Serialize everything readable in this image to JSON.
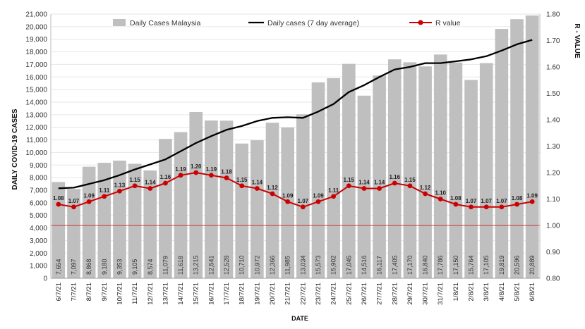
{
  "chart_data": {
    "type": "bar",
    "title": "",
    "xlabel": "DATE",
    "ylabel": "DAILY COVID-19 CASES",
    "y2label": "R - VALUE",
    "ylim": [
      0,
      21000
    ],
    "y2lim": [
      0.8,
      1.8
    ],
    "yticks": [
      "0",
      "1,000",
      "2,000",
      "3,000",
      "4,000",
      "5,000",
      "6,000",
      "7,000",
      "8,000",
      "9,000",
      "10,000",
      "11,000",
      "12,000",
      "13,000",
      "14,000",
      "15,000",
      "16,000",
      "17,000",
      "18,000",
      "19,000",
      "20,000",
      "21,000"
    ],
    "y2ticks": [
      "0.80",
      "0.90",
      "1.00",
      "1.10",
      "1.20",
      "1.30",
      "1.40",
      "1.50",
      "1.60",
      "1.70",
      "1.80"
    ],
    "categories": [
      "6/7/21",
      "7/7/21",
      "8/7/21",
      "9/7/21",
      "10/7/21",
      "11/7/21",
      "12/7/21",
      "13/7/21",
      "14/7/21",
      "15/7/21",
      "16/7/21",
      "17/7/21",
      "18/7/21",
      "19/7/21",
      "20/7/21",
      "21/7/21",
      "22/7/21",
      "23/7/21",
      "24/7/21",
      "25/7/21",
      "26/7/21",
      "27/7/21",
      "28/7/21",
      "29/7/21",
      "30/7/21",
      "31/7/21",
      "1/8/21",
      "2/8/21",
      "3/8/21",
      "4/8/21",
      "5/8/21",
      "6/8/21"
    ],
    "series": [
      {
        "name": "Daily Cases Malaysia",
        "kind": "bar",
        "color": "#bfbfbf",
        "values": [
          7654,
          7097,
          8868,
          9180,
          9353,
          9105,
          8574,
          11079,
          11618,
          13215,
          12541,
          12528,
          10710,
          10972,
          12366,
          11985,
          13034,
          15573,
          15902,
          17045,
          14516,
          16117,
          17405,
          17170,
          16840,
          17786,
          17150,
          15764,
          17105,
          19819,
          20596,
          20889
        ],
        "labels": [
          "7,654",
          "7,097",
          "8,868",
          "9,180",
          "9,353",
          "9,105",
          "8,574",
          "11,079",
          "11,618",
          "13,215",
          "12,541",
          "12,528",
          "10,710",
          "10,972",
          "12,366",
          "11,985",
          "13,034",
          "15,573",
          "15,902",
          "17,045",
          "14,516",
          "16,117",
          "17,405",
          "17,170",
          "16,840",
          "17,786",
          "17,150",
          "15,764",
          "17,105",
          "19,819",
          "20,596",
          "20,889"
        ]
      },
      {
        "name": "Daily cases (7 day average)",
        "kind": "line",
        "color": "#000000",
        "values": [
          7150,
          7200,
          7500,
          7800,
          8200,
          8650,
          9050,
          9450,
          10100,
          10750,
          11300,
          11800,
          12100,
          12500,
          12750,
          12800,
          12750,
          13250,
          13850,
          14800,
          15350,
          16000,
          16600,
          16800,
          17100,
          17100,
          17250,
          17400,
          17650,
          18100,
          18600,
          18950
        ]
      },
      {
        "name": "R value",
        "kind": "line",
        "axis": "right",
        "color": "#cc0000",
        "values": [
          1.08,
          1.07,
          1.09,
          1.11,
          1.13,
          1.15,
          1.14,
          1.16,
          1.19,
          1.2,
          1.19,
          1.18,
          1.15,
          1.14,
          1.12,
          1.09,
          1.07,
          1.09,
          1.11,
          1.15,
          1.14,
          1.14,
          1.16,
          1.15,
          1.12,
          1.1,
          1.08,
          1.07,
          1.07,
          1.07,
          1.08,
          1.09
        ],
        "labels": [
          "1.08",
          "1.07",
          "1.09",
          "1.11",
          "1.13",
          "1.15",
          "1.14",
          "1.16",
          "1.19",
          "1.20",
          "1.19",
          "1.18",
          "1.15",
          "1.14",
          "1.12",
          "1.09",
          "1.07",
          "1.09",
          "1.11",
          "1.15",
          "1.14",
          "1.14",
          "1.16",
          "1.15",
          "1.12",
          "1.10",
          "1.08",
          "1.07",
          "1.07",
          "1.07",
          "1.08",
          "1.09"
        ]
      }
    ],
    "reference_line": {
      "axis": "right",
      "value": 1.0,
      "color": "#cc3333"
    },
    "legend": {
      "position": "top"
    }
  }
}
